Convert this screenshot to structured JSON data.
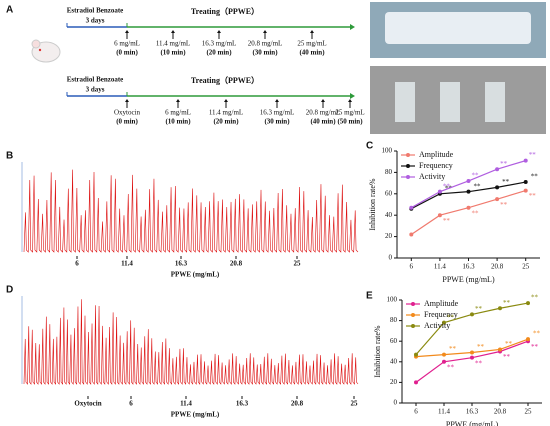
{
  "panels": {
    "a": "A",
    "b": "B",
    "c": "C",
    "d": "D",
    "e": "E"
  },
  "timeline1": {
    "pre": "Estradiol Benzoate",
    "days": "3 days",
    "treat": "Treating（PPWE）",
    "points": [
      {
        "dose": "6 mg/mL",
        "time": "(0 min)"
      },
      {
        "dose": "11.4 mg/mL",
        "time": "(10 min)"
      },
      {
        "dose": "16.3 mg/mL",
        "time": "(20 min)"
      },
      {
        "dose": "20.8 mg/mL",
        "time": "(30 min)"
      },
      {
        "dose": "25 mg/mL",
        "time": "(40 min)"
      }
    ]
  },
  "timeline2": {
    "pre": "Estradiol Benzoate",
    "days": "3 days",
    "treat": "Treating（PPWE）",
    "points": [
      {
        "dose": "Oxytocin",
        "time": "(0 min)"
      },
      {
        "dose": "6 mg/mL",
        "time": "(10 min)"
      },
      {
        "dose": "11.4 mg/mL",
        "time": "(20 min)"
      },
      {
        "dose": "16.3 mg/mL",
        "time": "(30 min)"
      },
      {
        "dose": "20.8 mg/mL",
        "time": "(40 min)"
      },
      {
        "dose": "25 mg/mL",
        "time": "(50 min)"
      }
    ]
  },
  "trace_b": {
    "x_labels": [
      "6",
      "11.4",
      "16.3",
      "20.8",
      "25"
    ],
    "x_label": "PPWE (mg/mL)"
  },
  "trace_d": {
    "x_labels": [
      "Oxytocin",
      "6",
      "11.4",
      "16.3",
      "20.8",
      "25"
    ],
    "x_label": "PPWE (mg/mL)"
  },
  "chart_data": [
    {
      "type": "line",
      "categories": [
        "6",
        "11.4",
        "16.3",
        "20.8",
        "25"
      ],
      "x_label": "PPWE (mg/mL)",
      "y_label": "Inhibition rate%",
      "ylim": [
        0,
        100
      ],
      "yticks": [
        0,
        20,
        40,
        60,
        80,
        100
      ],
      "significance": "**",
      "series": [
        {
          "name": "Amplitude",
          "color": "#f07a6e",
          "values": [
            22,
            40,
            47,
            55,
            63
          ]
        },
        {
          "name": "Frequency",
          "color": "#111111",
          "values": [
            46,
            60,
            62,
            66,
            71
          ]
        },
        {
          "name": "Activity",
          "color": "#b05ee0",
          "values": [
            47,
            62,
            72,
            83,
            91
          ]
        }
      ]
    },
    {
      "type": "line",
      "categories": [
        "6",
        "11.4",
        "16.3",
        "20.8",
        "25"
      ],
      "x_label": "PPWE (mg/mL)",
      "y_label": "Inhibition rate%",
      "ylim": [
        0,
        100
      ],
      "yticks": [
        0,
        20,
        40,
        60,
        80,
        100
      ],
      "significance": "**",
      "series": [
        {
          "name": "Amplitude",
          "color": "#e0208f",
          "values": [
            20,
            40,
            44,
            50,
            60
          ]
        },
        {
          "name": "Frequency",
          "color": "#f28a1c",
          "values": [
            45,
            47,
            49,
            52,
            62
          ]
        },
        {
          "name": "Activity",
          "color": "#8a8a10",
          "values": [
            47,
            78,
            86,
            92,
            97
          ]
        }
      ]
    }
  ]
}
